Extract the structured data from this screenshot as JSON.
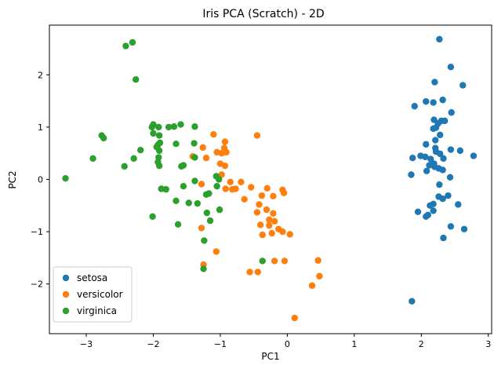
{
  "chart_data": {
    "type": "scatter",
    "title": "Iris PCA (Scratch) - 2D",
    "xlabel": "PC1",
    "ylabel": "PC2",
    "xlim": [
      -3.55,
      3.05
    ],
    "ylim": [
      -2.95,
      2.95
    ],
    "xticks": [
      -3,
      -2,
      -1,
      0,
      1,
      2,
      3
    ],
    "yticks": [
      -2,
      -1,
      0,
      1,
      2
    ],
    "grid": false,
    "legend_position": "bottom-left",
    "series": [
      {
        "name": "setosa",
        "color": "#1f77b4",
        "points": [
          [
            2.27,
            2.68
          ],
          [
            2.44,
            2.15
          ],
          [
            2.62,
            1.8
          ],
          [
            2.2,
            1.86
          ],
          [
            2.32,
            1.52
          ],
          [
            2.07,
            1.49
          ],
          [
            2.18,
            1.47
          ],
          [
            1.9,
            1.4
          ],
          [
            2.45,
            1.28
          ],
          [
            2.19,
            1.14
          ],
          [
            2.25,
            1.07
          ],
          [
            2.35,
            1.12
          ],
          [
            2.3,
            1.12
          ],
          [
            2.22,
            0.99
          ],
          [
            2.18,
            0.97
          ],
          [
            2.28,
            0.85
          ],
          [
            2.07,
            0.67
          ],
          [
            2.21,
            0.75
          ],
          [
            2.21,
            0.6
          ],
          [
            2.58,
            0.55
          ],
          [
            2.44,
            0.57
          ],
          [
            2.22,
            0.53
          ],
          [
            2.28,
            0.49
          ],
          [
            2.06,
            0.43
          ],
          [
            1.99,
            0.45
          ],
          [
            1.87,
            0.41
          ],
          [
            2.78,
            0.45
          ],
          [
            2.33,
            0.4
          ],
          [
            2.14,
            0.39
          ],
          [
            1.85,
            0.09
          ],
          [
            2.2,
            0.24
          ],
          [
            2.12,
            0.27
          ],
          [
            2.19,
            0.3
          ],
          [
            2.26,
            0.21
          ],
          [
            2.32,
            0.18
          ],
          [
            2.08,
            0.16
          ],
          [
            2.43,
            0.04
          ],
          [
            2.27,
            -0.1
          ],
          [
            2.26,
            -0.33
          ],
          [
            2.32,
            -0.37
          ],
          [
            2.4,
            -0.31
          ],
          [
            2.18,
            -0.47
          ],
          [
            2.13,
            -0.5
          ],
          [
            2.55,
            -0.48
          ],
          [
            2.18,
            -0.6
          ],
          [
            2.1,
            -0.68
          ],
          [
            2.07,
            -0.71
          ],
          [
            1.95,
            -0.62
          ],
          [
            2.44,
            -0.9
          ],
          [
            2.64,
            -0.95
          ],
          [
            2.33,
            -1.12
          ],
          [
            1.86,
            -2.33
          ]
        ]
      },
      {
        "name": "versicolor",
        "color": "#ff7f0e",
        "points": [
          [
            -1.1,
            0.86
          ],
          [
            -0.45,
            0.84
          ],
          [
            -0.93,
            0.72
          ],
          [
            -0.94,
            0.6
          ],
          [
            -1.26,
            0.61
          ],
          [
            -0.91,
            0.52
          ],
          [
            -1.05,
            0.52
          ],
          [
            -0.98,
            0.5
          ],
          [
            -1.41,
            0.44
          ],
          [
            -1.21,
            0.41
          ],
          [
            -1.0,
            0.3
          ],
          [
            -0.93,
            0.26
          ],
          [
            -0.98,
            0.09
          ],
          [
            -0.85,
            -0.05
          ],
          [
            -0.69,
            -0.05
          ],
          [
            -1.28,
            -0.09
          ],
          [
            -0.92,
            -0.18
          ],
          [
            -0.82,
            -0.19
          ],
          [
            -0.77,
            -0.18
          ],
          [
            -0.54,
            -0.15
          ],
          [
            -0.3,
            -0.17
          ],
          [
            -0.07,
            -0.2
          ],
          [
            -0.05,
            -0.26
          ],
          [
            -0.38,
            -0.31
          ],
          [
            -0.21,
            -0.32
          ],
          [
            -0.64,
            -0.38
          ],
          [
            -0.42,
            -0.48
          ],
          [
            -0.31,
            -0.58
          ],
          [
            -0.45,
            -0.63
          ],
          [
            -0.21,
            -0.65
          ],
          [
            -0.27,
            -0.77
          ],
          [
            -0.19,
            -0.8
          ],
          [
            -0.4,
            -0.87
          ],
          [
            -0.27,
            -0.88
          ],
          [
            -1.28,
            -0.93
          ],
          [
            -0.13,
            -0.95
          ],
          [
            -0.07,
            -1.0
          ],
          [
            0.04,
            -1.05
          ],
          [
            -0.23,
            -1.03
          ],
          [
            -0.37,
            -1.06
          ],
          [
            -1.06,
            -1.38
          ],
          [
            -0.19,
            -1.56
          ],
          [
            -0.04,
            -1.56
          ],
          [
            -1.25,
            -1.63
          ],
          [
            0.46,
            -1.55
          ],
          [
            -0.56,
            -1.77
          ],
          [
            -0.44,
            -1.77
          ],
          [
            0.48,
            -1.85
          ],
          [
            0.37,
            -2.03
          ],
          [
            0.11,
            -2.65
          ]
        ]
      },
      {
        "name": "virginica",
        "color": "#2ca02c",
        "points": [
          [
            -2.41,
            2.55
          ],
          [
            -2.31,
            2.62
          ],
          [
            -2.26,
            1.91
          ],
          [
            -2.0,
            1.05
          ],
          [
            -1.92,
            1.0
          ],
          [
            -1.59,
            1.05
          ],
          [
            -1.69,
            1.01
          ],
          [
            -2.02,
            1.0
          ],
          [
            -1.77,
            1.0
          ],
          [
            -1.38,
            1.01
          ],
          [
            -2.77,
            0.84
          ],
          [
            -2.74,
            0.79
          ],
          [
            -2.0,
            0.88
          ],
          [
            -1.91,
            0.84
          ],
          [
            -1.9,
            0.7
          ],
          [
            -1.66,
            0.68
          ],
          [
            -1.39,
            0.69
          ],
          [
            -1.93,
            0.66
          ],
          [
            -1.95,
            0.62
          ],
          [
            -2.19,
            0.56
          ],
          [
            -1.91,
            0.55
          ],
          [
            -1.38,
            0.42
          ],
          [
            -1.92,
            0.42
          ],
          [
            -2.9,
            0.4
          ],
          [
            -2.29,
            0.4
          ],
          [
            -1.93,
            0.33
          ],
          [
            -1.91,
            0.26
          ],
          [
            -1.55,
            0.27
          ],
          [
            -1.58,
            0.25
          ],
          [
            -2.43,
            0.25
          ],
          [
            -3.31,
            0.02
          ],
          [
            -1.06,
            0.06
          ],
          [
            -1.02,
            0.0
          ],
          [
            -1.05,
            -0.13
          ],
          [
            -1.38,
            -0.03
          ],
          [
            -1.55,
            -0.13
          ],
          [
            -1.88,
            -0.18
          ],
          [
            -1.81,
            -0.19
          ],
          [
            -1.17,
            -0.27
          ],
          [
            -1.21,
            -0.29
          ],
          [
            -1.66,
            -0.41
          ],
          [
            -1.47,
            -0.45
          ],
          [
            -1.34,
            -0.46
          ],
          [
            -1.01,
            -0.58
          ],
          [
            -1.2,
            -0.64
          ],
          [
            -1.63,
            -0.86
          ],
          [
            -1.15,
            -0.79
          ],
          [
            -2.01,
            -0.71
          ],
          [
            -1.24,
            -1.17
          ],
          [
            -1.25,
            -1.71
          ],
          [
            -0.37,
            -1.56
          ]
        ]
      }
    ]
  }
}
